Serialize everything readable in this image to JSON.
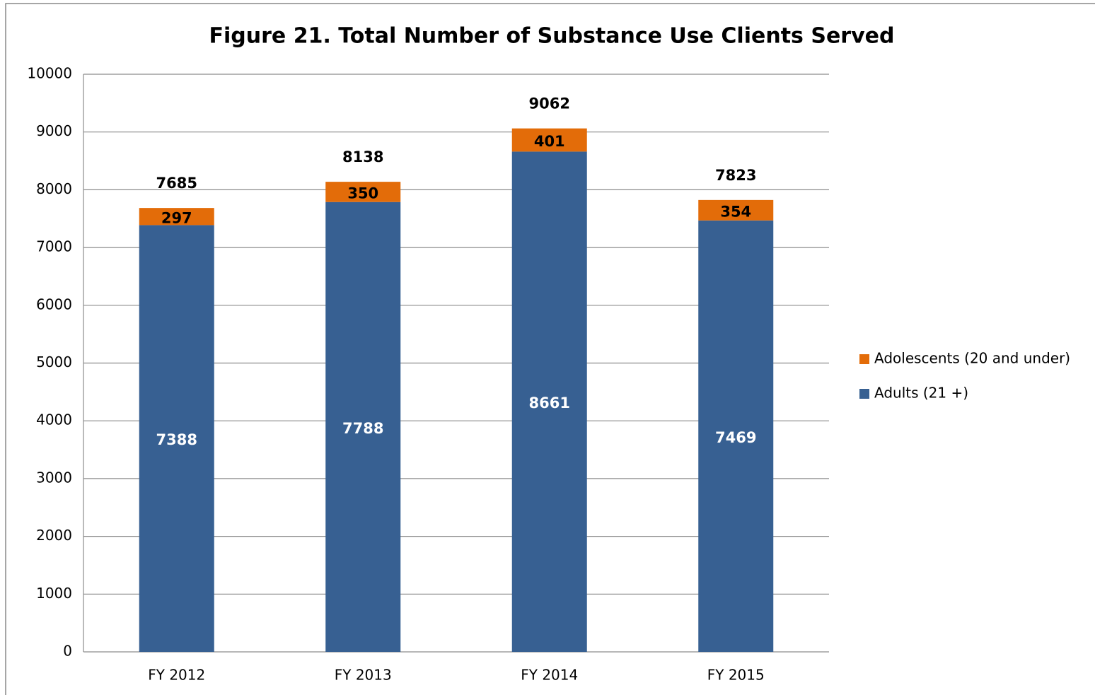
{
  "chart_data": {
    "type": "stacked_bar",
    "title": "Figure 21. Total Number of Substance Use  Clients Served",
    "categories": [
      "FY 2012",
      "FY 2013",
      "FY 2014",
      "FY 2015"
    ],
    "series": [
      {
        "name": "Adults (21 +)",
        "color": "#376092",
        "values": [
          7388,
          7788,
          8661,
          7469
        ]
      },
      {
        "name": "Adolescents (20 and under)",
        "color": "#e36c09",
        "values": [
          297,
          350,
          401,
          354
        ]
      }
    ],
    "totals": [
      7685,
      8138,
      9062,
      7823
    ],
    "ylim": [
      0,
      10000
    ],
    "yticks": [
      0,
      1000,
      2000,
      3000,
      4000,
      5000,
      6000,
      7000,
      8000,
      9000,
      10000
    ],
    "grid": true,
    "legend": "right"
  }
}
